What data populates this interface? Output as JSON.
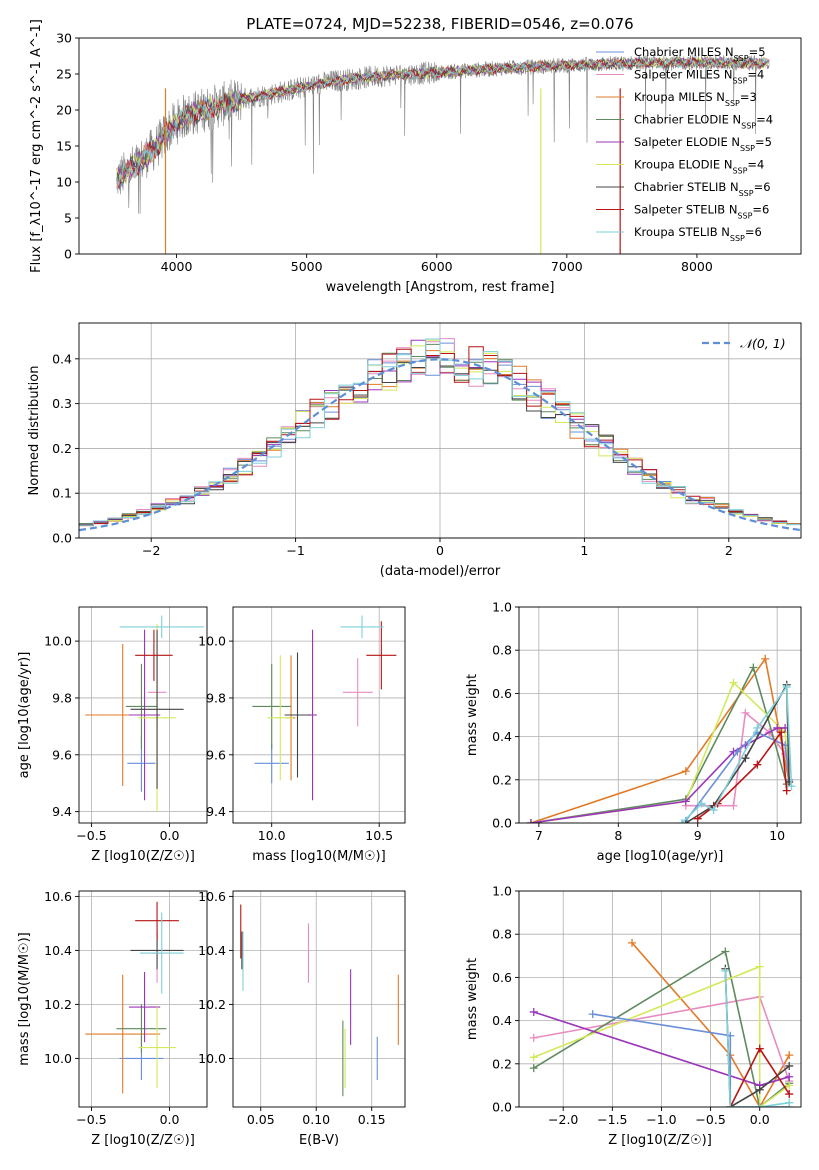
{
  "figure_title": "PLATE=0724, MJD=52238, FIBERID=0546, z=0.076",
  "colors": {
    "Chabrier MILES": "#6a8fd8",
    "Salpeter MILES": "#e88cc0",
    "Kroupa MILES": "#e07b28",
    "Chabrier ELODIE": "#5f8a5f",
    "Salpeter ELODIE": "#9b35b9",
    "Kroupa ELODIE": "#d4e85a",
    "Chabrier STELIB": "#444444",
    "Salpeter STELIB": "#b81414",
    "Kroupa STELIB": "#7fd0d8",
    "data": "#808080",
    "normal": "#5b8fd6"
  },
  "chart_data": [
    {
      "id": "spectrum",
      "type": "line",
      "title": "PLATE=0724, MJD=52238, FIBERID=0546, z=0.076",
      "xlabel": "wavelength [Angstrom, rest frame]",
      "ylabel": "Flux [f_λ10^-17 erg cm^-2 s^-1 A^-1]",
      "xlim": [
        3250,
        8800
      ],
      "ylim": [
        0,
        30
      ],
      "xticks": [
        4000,
        5000,
        6000,
        7000,
        8000
      ],
      "yticks": [
        0,
        5,
        10,
        15,
        20,
        25,
        30
      ],
      "legend_position": "upper right",
      "legend": [
        {
          "name": "Chabrier MILES",
          "nssp": "5"
        },
        {
          "name": "Salpeter MILES",
          "nssp": "4"
        },
        {
          "name": "Kroupa MILES",
          "nssp": "3"
        },
        {
          "name": "Chabrier ELODIE",
          "nssp": "4"
        },
        {
          "name": "Salpeter ELODIE",
          "nssp": "5"
        },
        {
          "name": "Kroupa ELODIE",
          "nssp": "4"
        },
        {
          "name": "Chabrier STELIB",
          "nssp": "6"
        },
        {
          "name": "Salpeter STELIB",
          "nssp": "6"
        },
        {
          "name": "Kroupa STELIB",
          "nssp": "6"
        }
      ],
      "continuum": {
        "x": [
          3550,
          3700,
          3850,
          3950,
          4050,
          4200,
          4500,
          4800,
          5200,
          5600,
          6000,
          6500,
          7000,
          7500,
          8000,
          8500
        ],
        "y": [
          10.5,
          12.5,
          15.0,
          17.5,
          19.0,
          20.0,
          21.5,
          22.5,
          24.0,
          24.8,
          25.2,
          25.8,
          26.2,
          26.5,
          26.6,
          26.5
        ]
      },
      "data_x_range": [
        3540,
        8500
      ],
      "model_x_range": [
        3540,
        8560
      ]
    },
    {
      "id": "residuals",
      "type": "step",
      "xlabel": "(data-model)/error",
      "ylabel": "Normed distribution",
      "xlim": [
        -2.5,
        2.5
      ],
      "ylim": [
        0,
        0.48
      ],
      "xticks": [
        -2,
        -1,
        0,
        1,
        2
      ],
      "yticks": [
        0,
        0.1,
        0.2,
        0.3,
        0.4
      ],
      "bin_width": 0.1,
      "bin_start": -2.5,
      "bins": 50,
      "normal": {
        "label": "𝒩(0, 1)",
        "mean": 0,
        "sigma": 1
      },
      "legend_position": "upper right"
    },
    {
      "id": "age-Z",
      "type": "errorbar",
      "xlabel": "Z [log10(Z/Z☉)]",
      "ylabel": "age  [log10(age/yr)]",
      "xlim": [
        -0.58,
        0.24
      ],
      "ylim": [
        9.36,
        10.12
      ],
      "xticks": [
        -0.5,
        0.0
      ],
      "yticks": [
        9.4,
        9.6,
        9.8,
        10.0
      ],
      "points": [
        {
          "model": "Chabrier MILES",
          "x": -0.18,
          "xerr": 0.09,
          "y": 9.57,
          "yerr": 0.1
        },
        {
          "model": "Salpeter MILES",
          "x": -0.08,
          "xerr": 0.06,
          "y": 9.82,
          "yerr": 0.12
        },
        {
          "model": "Kroupa MILES",
          "x": -0.3,
          "xerr": 0.24,
          "y": 9.74,
          "yerr": 0.25
        },
        {
          "model": "Chabrier ELODIE",
          "x": -0.18,
          "xerr": 0.1,
          "y": 9.77,
          "yerr": 0.15
        },
        {
          "model": "Salpeter ELODIE",
          "x": -0.16,
          "xerr": 0.1,
          "y": 9.74,
          "yerr": 0.3
        },
        {
          "model": "Kroupa ELODIE",
          "x": -0.08,
          "xerr": 0.12,
          "y": 9.73,
          "yerr": 0.33
        },
        {
          "model": "Chabrier STELIB",
          "x": -0.08,
          "xerr": 0.17,
          "y": 9.76,
          "yerr": 0.28
        },
        {
          "model": "Salpeter STELIB",
          "x": -0.1,
          "xerr": 0.12,
          "y": 9.95,
          "yerr": 0.09
        },
        {
          "model": "Kroupa STELIB",
          "x": -0.05,
          "xerr": 0.27,
          "y": 10.05,
          "yerr": 0.04
        }
      ]
    },
    {
      "id": "age-mass",
      "type": "errorbar",
      "xlabel": "mass [log10(M/M☉)]",
      "ylabel": "",
      "xlim": [
        9.82,
        10.62
      ],
      "ylim": [
        9.36,
        10.12
      ],
      "xticks": [
        10.0,
        10.5
      ],
      "yticks": [
        9.4,
        9.6,
        9.8,
        10.0
      ],
      "points": [
        {
          "model": "Chabrier MILES",
          "x": 10.0,
          "xerr": 0.08,
          "y": 9.57,
          "yerr": 0.07
        },
        {
          "model": "Salpeter MILES",
          "x": 10.4,
          "xerr": 0.07,
          "y": 9.82,
          "yerr": 0.12
        },
        {
          "model": "Kroupa MILES",
          "x": 10.09,
          "xerr": 0.02,
          "y": 9.73,
          "yerr": 0.22
        },
        {
          "model": "Chabrier ELODIE",
          "x": 10.0,
          "xerr": 0.09,
          "y": 9.77,
          "yerr": 0.15
        },
        {
          "model": "Salpeter ELODIE",
          "x": 10.19,
          "xerr": 0.02,
          "y": 9.74,
          "yerr": 0.3
        },
        {
          "model": "Kroupa ELODIE",
          "x": 10.04,
          "xerr": 0.06,
          "y": 9.73,
          "yerr": 0.22
        },
        {
          "model": "Chabrier STELIB",
          "x": 10.12,
          "xerr": 0.06,
          "y": 9.74,
          "yerr": 0.22
        },
        {
          "model": "Salpeter STELIB",
          "x": 10.51,
          "xerr": 0.07,
          "y": 9.95,
          "yerr": 0.12
        },
        {
          "model": "Kroupa STELIB",
          "x": 10.42,
          "xerr": 0.1,
          "y": 10.05,
          "yerr": 0.04
        }
      ]
    },
    {
      "id": "massweight-age",
      "type": "line",
      "xlabel": "age  [log10(age/yr)]",
      "ylabel": "mass weight",
      "xlim": [
        6.75,
        10.3
      ],
      "ylim": [
        0,
        1.0
      ],
      "xticks": [
        7,
        8,
        9,
        10
      ],
      "yticks": [
        0.0,
        0.2,
        0.4,
        0.6,
        0.8,
        1.0
      ],
      "series": [
        {
          "model": "Kroupa MILES",
          "x": [
            6.9,
            8.85,
            9.85,
            10.15
          ],
          "y": [
            0.0,
            0.24,
            0.76,
            0.19
          ]
        },
        {
          "model": "Salpeter MILES",
          "x": [
            8.85,
            9.45,
            9.6,
            9.9,
            10.1
          ],
          "y": [
            0.08,
            0.08,
            0.51,
            0.42,
            0.32
          ]
        },
        {
          "model": "Chabrier ELODIE",
          "x": [
            6.9,
            8.85,
            9.7,
            10.12
          ],
          "y": [
            0.0,
            0.11,
            0.72,
            0.18
          ]
        },
        {
          "model": "Kroupa ELODIE",
          "x": [
            6.9,
            8.85,
            9.45,
            10.1,
            10.15
          ],
          "y": [
            0.0,
            0.1,
            0.65,
            0.42,
            0.2
          ]
        },
        {
          "model": "Salpeter ELODIE",
          "x": [
            6.9,
            8.85,
            9.45,
            9.6,
            10.0,
            10.1
          ],
          "y": [
            0.0,
            0.1,
            0.33,
            0.36,
            0.44,
            0.44
          ]
        },
        {
          "model": "Chabrier MILES",
          "x": [
            8.85,
            9.5,
            9.75,
            10.1,
            10.15
          ],
          "y": [
            0.01,
            0.33,
            0.42,
            0.36,
            0.2
          ]
        },
        {
          "model": "Chabrier STELIB",
          "x": [
            8.85,
            9.2,
            9.6,
            10.12,
            10.15
          ],
          "y": [
            0.0,
            0.08,
            0.3,
            0.64,
            0.19
          ]
        },
        {
          "model": "Salpeter STELIB",
          "x": [
            9.0,
            9.25,
            9.75,
            10.05,
            10.12
          ],
          "y": [
            0.02,
            0.09,
            0.27,
            0.42,
            0.15
          ]
        },
        {
          "model": "Kroupa STELIB",
          "x": [
            8.8,
            9.05,
            9.2,
            9.75,
            10.12,
            10.18
          ],
          "y": [
            0.0,
            0.09,
            0.06,
            0.44,
            0.63,
            0.17
          ]
        }
      ]
    },
    {
      "id": "mass-Z",
      "type": "errorbar",
      "xlabel": "Z [log10(Z/Z☉)]",
      "ylabel": "mass [log10(M/M☉)]",
      "xlim": [
        -0.58,
        0.24
      ],
      "ylim": [
        9.82,
        10.62
      ],
      "xticks": [
        -0.5,
        0.0
      ],
      "yticks": [
        10.0,
        10.2,
        10.4,
        10.6
      ],
      "points": [
        {
          "model": "Chabrier MILES",
          "x": -0.18,
          "xerr": 0.14,
          "y": 10.0,
          "yerr": 0.08
        },
        {
          "model": "Salpeter MILES",
          "x": -0.08,
          "xerr": 0.04,
          "y": 10.39,
          "yerr": 0.11
        },
        {
          "model": "Kroupa MILES",
          "x": -0.3,
          "xerr": 0.24,
          "y": 10.09,
          "yerr": 0.22
        },
        {
          "model": "Chabrier ELODIE",
          "x": -0.18,
          "xerr": 0.16,
          "y": 10.11,
          "yerr": 0.09
        },
        {
          "model": "Salpeter ELODIE",
          "x": -0.16,
          "xerr": 0.1,
          "y": 10.19,
          "yerr": 0.13
        },
        {
          "model": "Kroupa ELODIE",
          "x": -0.08,
          "xerr": 0.12,
          "y": 10.04,
          "yerr": 0.15
        },
        {
          "model": "Chabrier STELIB",
          "x": -0.08,
          "xerr": 0.17,
          "y": 10.4,
          "yerr": 0.07
        },
        {
          "model": "Salpeter STELIB",
          "x": -0.08,
          "xerr": 0.14,
          "y": 10.51,
          "yerr": 0.07
        },
        {
          "model": "Kroupa STELIB",
          "x": -0.05,
          "xerr": 0.14,
          "y": 10.39,
          "yerr": 0.15
        }
      ]
    },
    {
      "id": "mass-ebv",
      "type": "errorbar",
      "xlabel": "E(B-V)",
      "ylabel": "",
      "xlim": [
        0.025,
        0.18
      ],
      "ylim": [
        9.82,
        10.62
      ],
      "xticks": [
        0.05,
        0.1,
        0.15
      ],
      "yticks": [
        10.0,
        10.2,
        10.4,
        10.6
      ],
      "points": [
        {
          "model": "Chabrier MILES",
          "x": 0.155,
          "xerr": 0,
          "y": 10.0,
          "yerr": 0.08
        },
        {
          "model": "Salpeter MILES",
          "x": 0.093,
          "xerr": 0,
          "y": 10.39,
          "yerr": 0.11
        },
        {
          "model": "Kroupa MILES",
          "x": 0.174,
          "xerr": 0,
          "y": 10.18,
          "yerr": 0.13
        },
        {
          "model": "Chabrier ELODIE",
          "x": 0.124,
          "xerr": 0,
          "y": 10.0,
          "yerr": 0.14
        },
        {
          "model": "Salpeter ELODIE",
          "x": 0.131,
          "xerr": 0,
          "y": 10.19,
          "yerr": 0.14
        },
        {
          "model": "Kroupa ELODIE",
          "x": 0.126,
          "xerr": 0,
          "y": 10.0,
          "yerr": 0.11
        },
        {
          "model": "Chabrier STELIB",
          "x": 0.033,
          "xerr": 0,
          "y": 10.4,
          "yerr": 0.07
        },
        {
          "model": "Salpeter STELIB",
          "x": 0.032,
          "xerr": 0,
          "y": 10.47,
          "yerr": 0.1
        },
        {
          "model": "Kroupa STELIB",
          "x": 0.034,
          "xerr": 0,
          "y": 10.36,
          "yerr": 0.11
        }
      ]
    },
    {
      "id": "massweight-Z",
      "type": "line",
      "xlabel": "Z [log10(Z/Z☉)]",
      "ylabel": "mass weight",
      "xlim": [
        -2.45,
        0.42
      ],
      "ylim": [
        0,
        1.0
      ],
      "xticks": [
        -2.0,
        -1.5,
        -1.0,
        -0.5,
        0.0
      ],
      "yticks": [
        0.0,
        0.2,
        0.4,
        0.6,
        0.8,
        1.0
      ],
      "series": [
        {
          "model": "Kroupa MILES",
          "x": [
            -1.3,
            -0.3,
            0.0,
            0.3
          ],
          "y": [
            0.76,
            0.24,
            0.0,
            0.24
          ]
        },
        {
          "model": "Salpeter MILES",
          "x": [
            -2.3,
            0.0,
            0.3
          ],
          "y": [
            0.32,
            0.51,
            0.12
          ]
        },
        {
          "model": "Chabrier ELODIE",
          "x": [
            -2.3,
            -0.35,
            0.0,
            0.3
          ],
          "y": [
            0.18,
            0.72,
            0.0,
            0.11
          ]
        },
        {
          "model": "Kroupa ELODIE",
          "x": [
            -2.3,
            0.0,
            0.0,
            0.3
          ],
          "y": [
            0.23,
            0.65,
            0.0,
            0.1
          ]
        },
        {
          "model": "Salpeter ELODIE",
          "x": [
            -2.3,
            0.0,
            0.3
          ],
          "y": [
            0.44,
            0.1,
            0.14
          ]
        },
        {
          "model": "Chabrier MILES",
          "x": [
            -1.7,
            -0.3,
            -0.3,
            0.0,
            0.3
          ],
          "y": [
            0.43,
            0.33,
            0.0,
            0.0,
            0.0
          ]
        },
        {
          "model": "Chabrier STELIB",
          "x": [
            -0.35,
            -0.3,
            0.0,
            0.3
          ],
          "y": [
            0.64,
            0.0,
            0.08,
            0.19
          ]
        },
        {
          "model": "Salpeter STELIB",
          "x": [
            -0.3,
            0.0,
            0.3
          ],
          "y": [
            0.0,
            0.27,
            0.06
          ]
        },
        {
          "model": "Kroupa STELIB",
          "x": [
            -0.35,
            -0.3,
            0.0,
            0.3
          ],
          "y": [
            0.63,
            0.0,
            0.0,
            0.02
          ]
        }
      ]
    }
  ]
}
